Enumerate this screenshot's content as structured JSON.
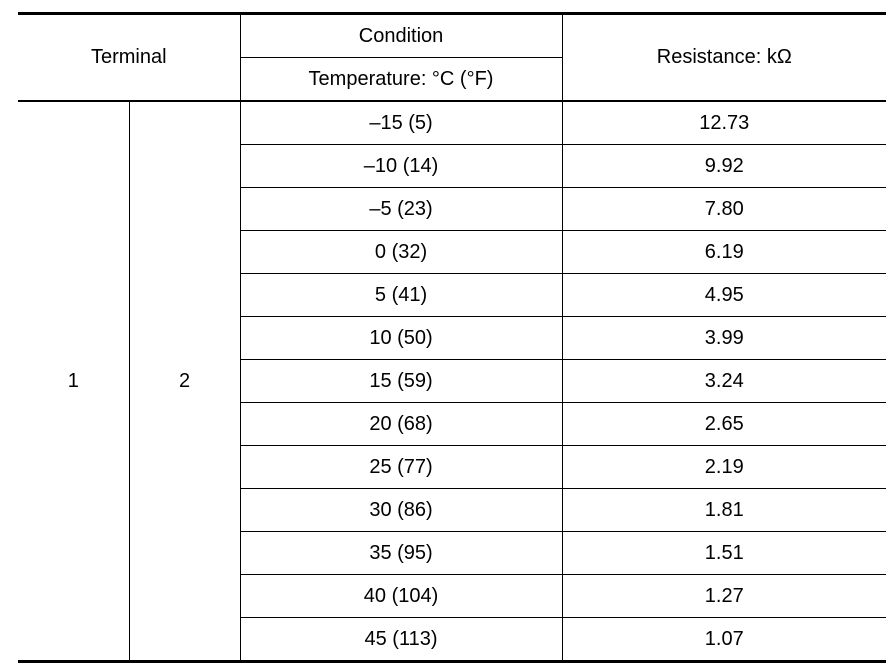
{
  "table": {
    "header": {
      "terminal": "Terminal",
      "condition": "Condition",
      "temperature": "Temperature: °C (°F)",
      "resistance": "Resistance: kΩ"
    },
    "terminal_a": "1",
    "terminal_b": "2",
    "rows": [
      {
        "temp": "–15 (5)",
        "resistance": "12.73"
      },
      {
        "temp": "–10 (14)",
        "resistance": "9.92"
      },
      {
        "temp": "–5 (23)",
        "resistance": "7.80"
      },
      {
        "temp": "0 (32)",
        "resistance": "6.19"
      },
      {
        "temp": "5 (41)",
        "resistance": "4.95"
      },
      {
        "temp": "10 (50)",
        "resistance": "3.99"
      },
      {
        "temp": "15 (59)",
        "resistance": "3.24"
      },
      {
        "temp": "20 (68)",
        "resistance": "2.65"
      },
      {
        "temp": "25 (77)",
        "resistance": "2.19"
      },
      {
        "temp": "30 (86)",
        "resistance": "1.81"
      },
      {
        "temp": "35 (95)",
        "resistance": "1.51"
      },
      {
        "temp": "40 (104)",
        "resistance": "1.27"
      },
      {
        "temp": "45 (113)",
        "resistance": "1.07"
      }
    ]
  }
}
